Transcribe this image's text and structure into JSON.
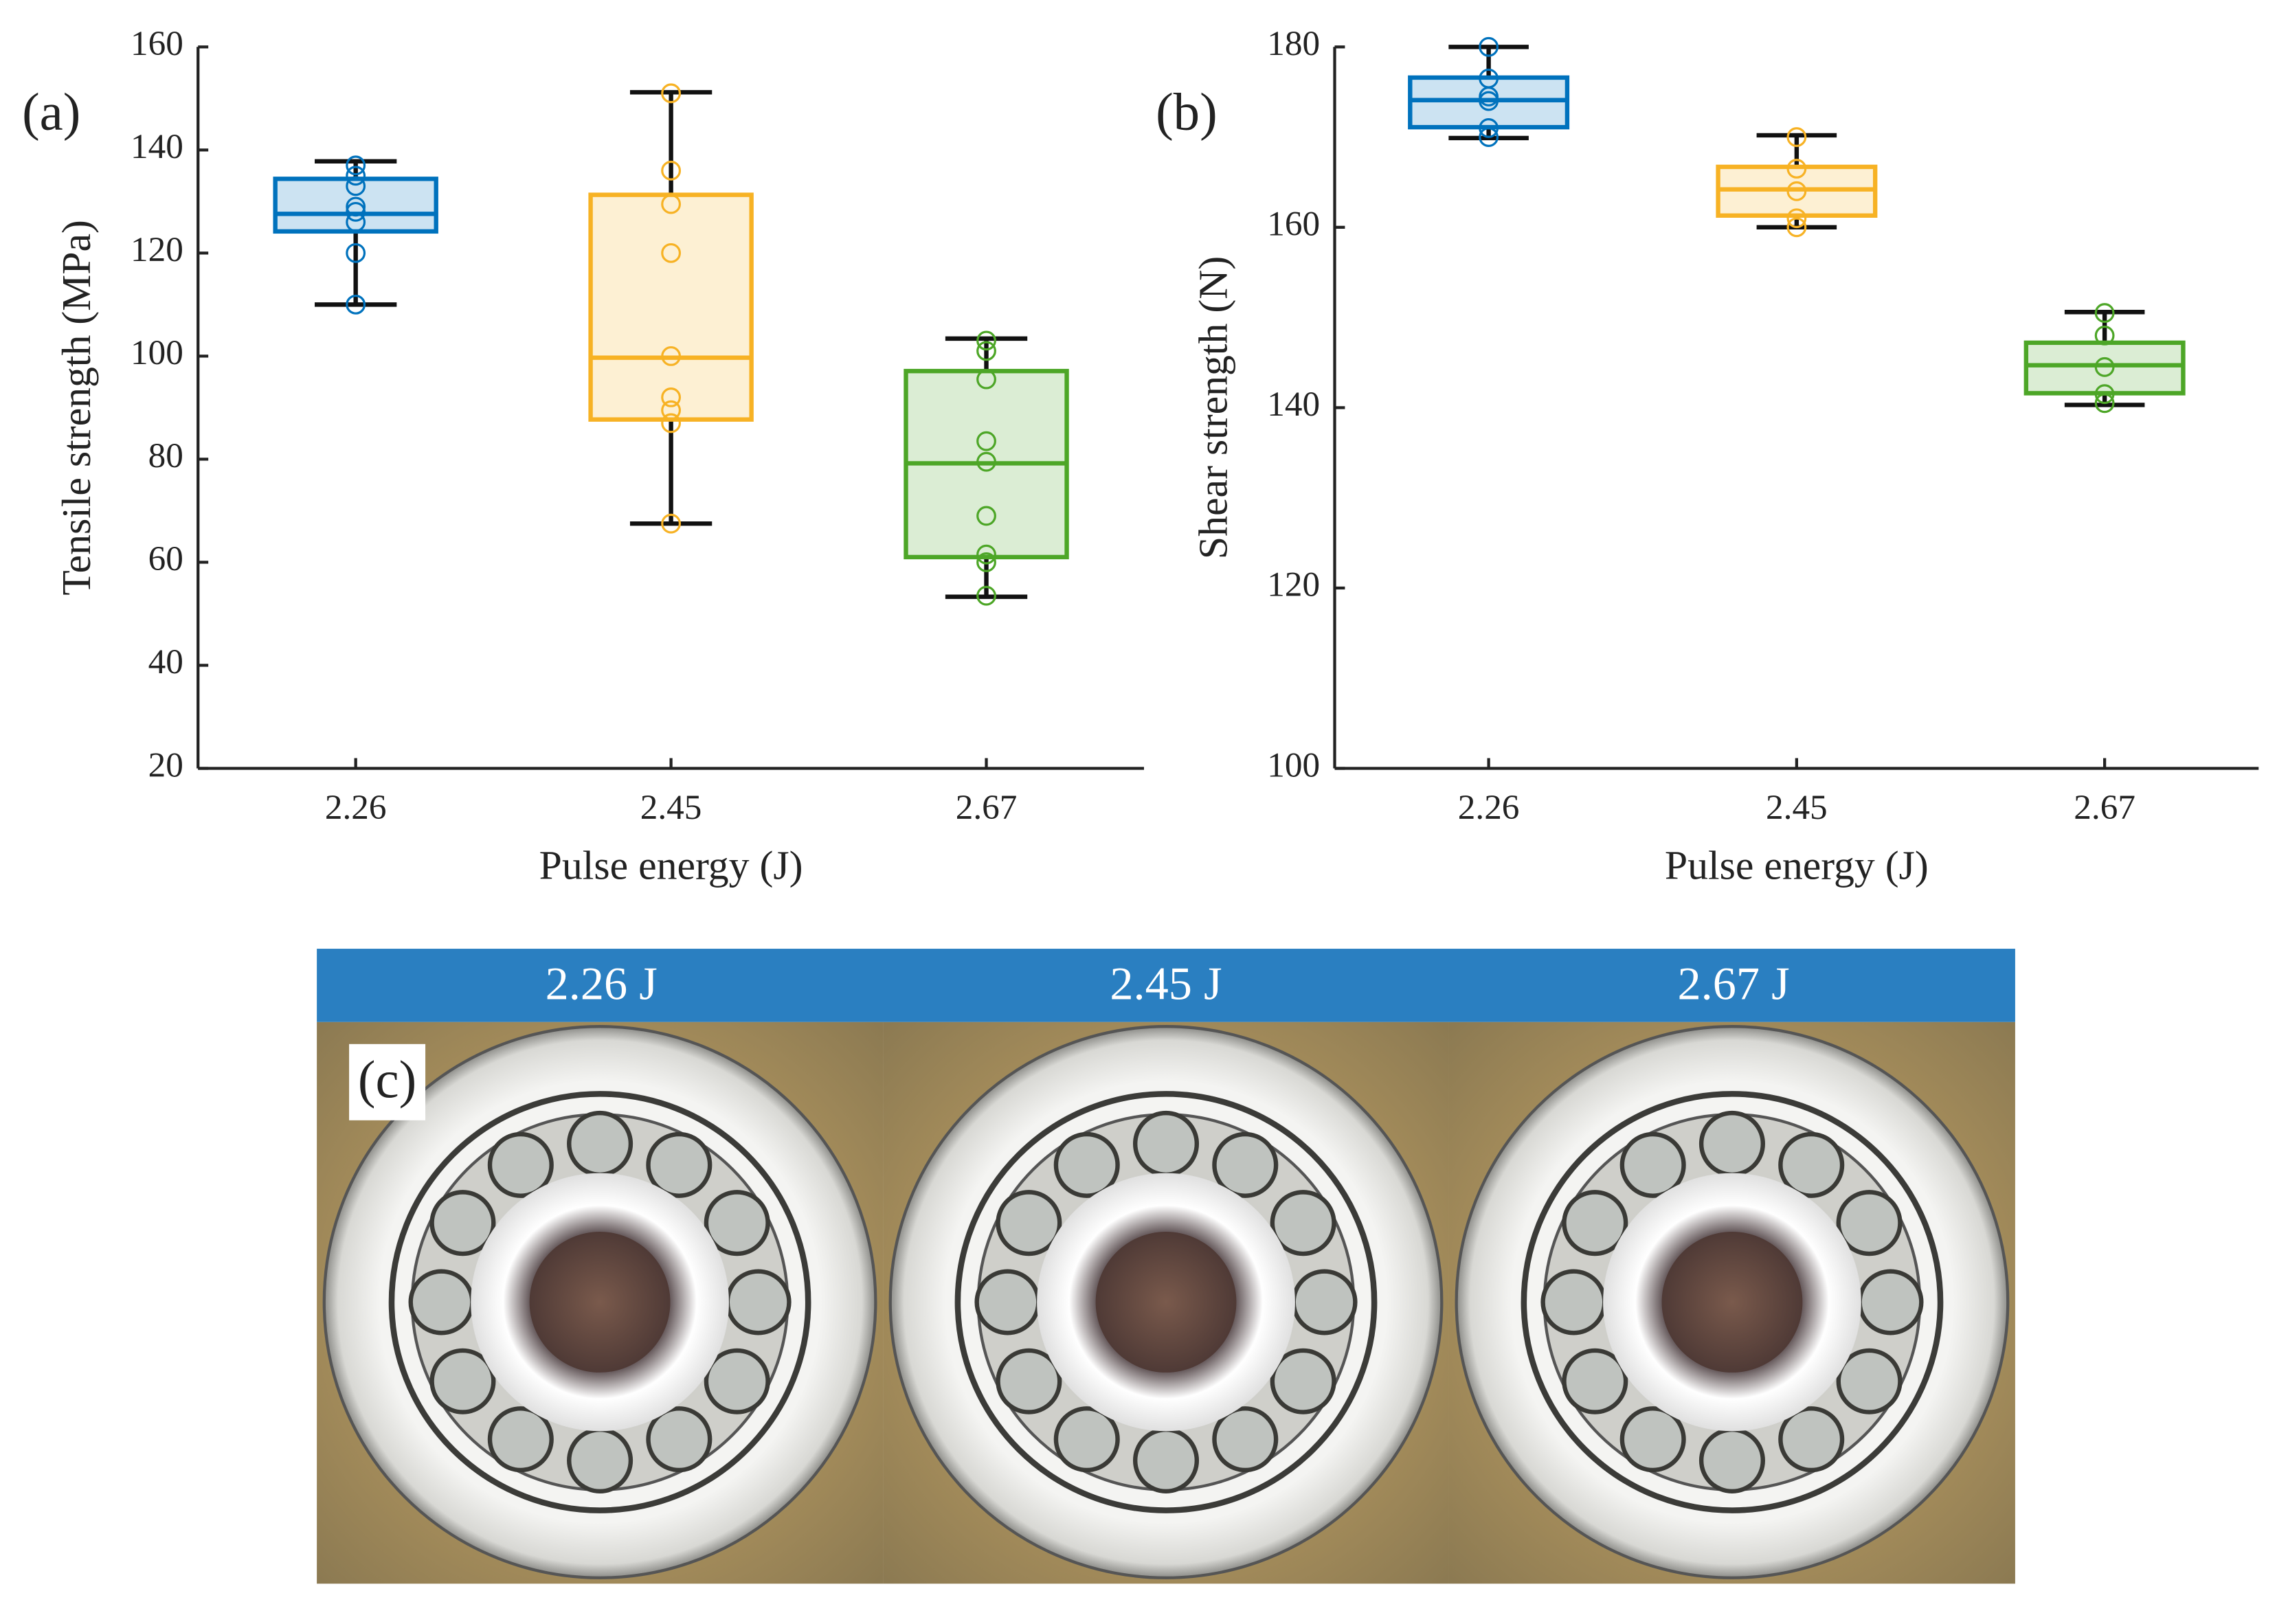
{
  "chart_data": [
    {
      "type": "box",
      "panel_label": "(a)",
      "xlabel": "Pulse energy (J)",
      "ylabel": "Tensile strength (MPa)",
      "categories": [
        "2.26",
        "2.45",
        "2.67"
      ],
      "ylim": [
        20,
        160
      ],
      "yticks": [
        20,
        40,
        60,
        80,
        100,
        120,
        140,
        160
      ],
      "series": [
        {
          "color": "#0072bd",
          "whisker_low": 110,
          "q1": 124.2,
          "median": 127.6,
          "q3": 134.4,
          "whisker_high": 137.8,
          "points": [
            110,
            120,
            126,
            128,
            129,
            133,
            135,
            137
          ]
        },
        {
          "color": "#f7b224",
          "whisker_low": 67.5,
          "q1": 87.7,
          "median": 99.7,
          "q3": 131.3,
          "whisker_high": 151.2,
          "points": [
            67.5,
            87,
            89.5,
            92,
            100,
            120,
            129.5,
            136,
            151
          ]
        },
        {
          "color": "#4da627",
          "whisker_low": 53.3,
          "q1": 61,
          "median": 79.2,
          "q3": 97.1,
          "whisker_high": 103.4,
          "points": [
            53.5,
            60,
            61.5,
            69,
            79.5,
            83.5,
            95.5,
            101,
            103
          ]
        }
      ]
    },
    {
      "type": "box",
      "panel_label": "(b)",
      "xlabel": "Pulse energy (J)",
      "ylabel": "Shear strength (N)",
      "categories": [
        "2.26",
        "2.45",
        "2.67"
      ],
      "ylim": [
        100,
        180
      ],
      "yticks": [
        100,
        120,
        140,
        160,
        180
      ],
      "series": [
        {
          "color": "#0072bd",
          "whisker_low": 169.9,
          "q1": 171.1,
          "median": 174.1,
          "q3": 176.6,
          "whisker_high": 180,
          "points": [
            170,
            171,
            174,
            174.5,
            176.5,
            180
          ]
        },
        {
          "color": "#f7b224",
          "whisker_low": 160,
          "q1": 161.3,
          "median": 164.2,
          "q3": 166.7,
          "whisker_high": 170.2,
          "points": [
            160,
            161,
            164,
            166.5,
            170
          ]
        },
        {
          "color": "#4da627",
          "whisker_low": 140.3,
          "q1": 141.6,
          "median": 144.7,
          "q3": 147.2,
          "whisker_high": 150.6,
          "points": [
            140.5,
            141.5,
            144.5,
            148,
            150.5
          ]
        }
      ]
    }
  ],
  "photo_panel": {
    "label": "(c)",
    "headers": [
      "2.26 J",
      "2.45 J",
      "2.67 J"
    ]
  }
}
